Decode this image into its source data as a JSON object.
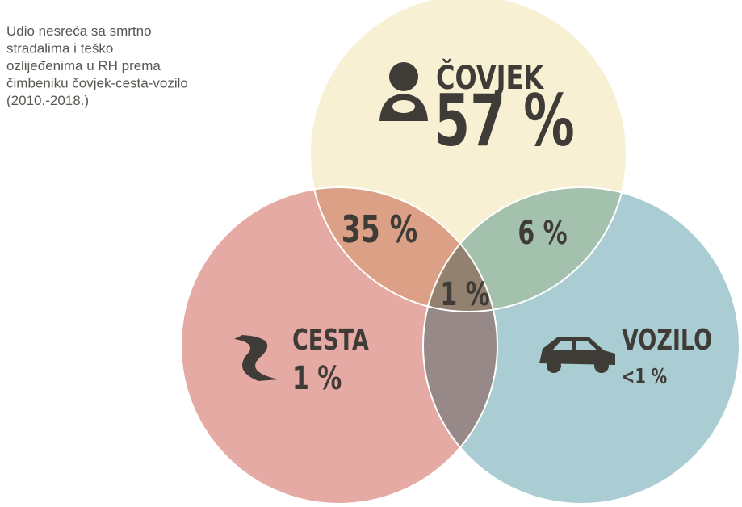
{
  "title_lines": [
    "Udio nesreća sa smrtno",
    "stradalima i teško",
    "ozlijeđenima u RH prema",
    "čimbeniku čovjek-cesta-vozilo",
    "(2010.-2018.)"
  ],
  "circles": {
    "covjek": {
      "label": "ČOVJEK",
      "share": "57 %"
    },
    "cesta": {
      "label": "CESTA",
      "share": "1 %"
    },
    "vozilo": {
      "label": "VOZILO",
      "share": "<1 %"
    }
  },
  "overlaps": {
    "covjek_cesta": "35 %",
    "covjek_vozilo": "6 %",
    "all": "1 %"
  }
}
